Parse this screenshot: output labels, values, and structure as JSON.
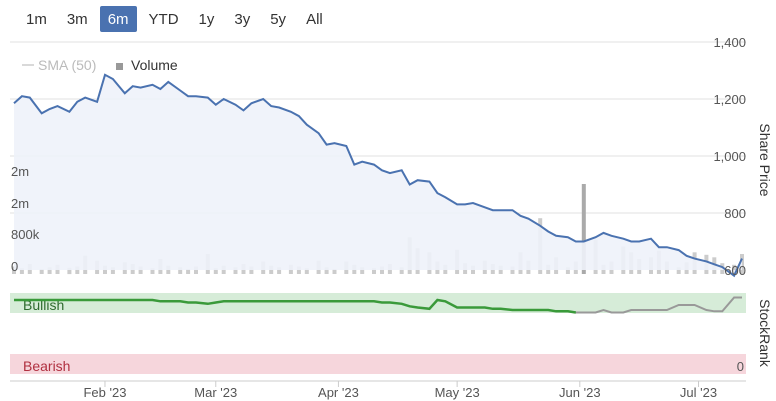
{
  "range_selector": {
    "buttons": [
      "1m",
      "3m",
      "6m",
      "YTD",
      "1y",
      "3y",
      "5y",
      "All"
    ],
    "active": "6m"
  },
  "legend": {
    "sma_label": "SMA (50)",
    "volume_label": "Volume"
  },
  "colors": {
    "price_line": "#4a72b0",
    "price_fill": "#eef2fa",
    "volume_bar": "#cccccc",
    "volume_spike": "#aaaaaa",
    "bullish_band": "#d6ecd8",
    "bearish_band": "#f6d6dc",
    "rank_green": "#3a9a3a",
    "rank_gray": "#999999",
    "active_btn": "#4a72b0"
  },
  "chart_data": {
    "type": "line",
    "title": "",
    "x_tick_labels": [
      "Feb '23",
      "Mar '23",
      "Apr '23",
      "May '23",
      "Jun '23",
      "Jul '23"
    ],
    "price_axis": {
      "title": "Share Price",
      "ticks": [
        "1,400",
        "1,200",
        "1,000",
        "800",
        "600"
      ],
      "ylim": [
        600,
        1400
      ]
    },
    "volume_axis": {
      "ticks": [
        "2m",
        "2m",
        "800k",
        "0"
      ]
    },
    "series": [
      {
        "name": "Share Price",
        "x": [
          "2023-01-09",
          "2023-01-11",
          "2023-01-13",
          "2023-01-16",
          "2023-01-18",
          "2023-01-20",
          "2023-01-23",
          "2023-01-25",
          "2023-01-27",
          "2023-01-30",
          "2023-02-01",
          "2023-02-03",
          "2023-02-06",
          "2023-02-08",
          "2023-02-10",
          "2023-02-13",
          "2023-02-15",
          "2023-02-17",
          "2023-02-20",
          "2023-02-22",
          "2023-02-24",
          "2023-02-27",
          "2023-03-01",
          "2023-03-03",
          "2023-03-06",
          "2023-03-08",
          "2023-03-10",
          "2023-03-13",
          "2023-03-15",
          "2023-03-17",
          "2023-03-20",
          "2023-03-22",
          "2023-03-24",
          "2023-03-27",
          "2023-03-29",
          "2023-03-31",
          "2023-04-03",
          "2023-04-05",
          "2023-04-07",
          "2023-04-10",
          "2023-04-12",
          "2023-04-14",
          "2023-04-17",
          "2023-04-19",
          "2023-04-21",
          "2023-04-24",
          "2023-04-26",
          "2023-04-28",
          "2023-05-01",
          "2023-05-03",
          "2023-05-05",
          "2023-05-08",
          "2023-05-10",
          "2023-05-12",
          "2023-05-15",
          "2023-05-17",
          "2023-05-19",
          "2023-05-22",
          "2023-05-24",
          "2023-05-26",
          "2023-05-29",
          "2023-05-31",
          "2023-06-02",
          "2023-06-05",
          "2023-06-07",
          "2023-06-09",
          "2023-06-12",
          "2023-06-14",
          "2023-06-16",
          "2023-06-19",
          "2023-06-21",
          "2023-06-23",
          "2023-06-26",
          "2023-06-28",
          "2023-06-30",
          "2023-07-03",
          "2023-07-05",
          "2023-07-07",
          "2023-07-10",
          "2023-07-12"
        ],
        "values": [
          1185,
          1210,
          1205,
          1150,
          1165,
          1175,
          1155,
          1190,
          1205,
          1190,
          1285,
          1270,
          1220,
          1245,
          1240,
          1250,
          1235,
          1260,
          1230,
          1210,
          1210,
          1205,
          1180,
          1200,
          1180,
          1160,
          1185,
          1200,
          1175,
          1170,
          1155,
          1140,
          1110,
          1080,
          1040,
          1045,
          1035,
          970,
          980,
          970,
          950,
          940,
          950,
          900,
          915,
          910,
          870,
          855,
          830,
          830,
          835,
          820,
          810,
          810,
          810,
          790,
          780,
          755,
          735,
          720,
          715,
          700,
          700,
          715,
          730,
          720,
          710,
          700,
          700,
          710,
          680,
          680,
          670,
          650,
          640,
          630,
          620,
          610,
          580,
          640
        ]
      },
      {
        "name": "Volume",
        "values": [
          90,
          70,
          120,
          60,
          80,
          110,
          75,
          90,
          220,
          160,
          100,
          80,
          140,
          120,
          90,
          70,
          180,
          100,
          80,
          60,
          90,
          240,
          70,
          100,
          80,
          120,
          90,
          150,
          100,
          80,
          110,
          90,
          70,
          160,
          80,
          60,
          150,
          110,
          80,
          70,
          90,
          120,
          80,
          440,
          310,
          260,
          150,
          110,
          290,
          130,
          100,
          160,
          120,
          100,
          90,
          260,
          160,
          670,
          110,
          200,
          80,
          150,
          1080,
          410,
          110,
          150,
          330,
          260,
          180,
          200,
          280,
          150,
          80,
          140,
          260,
          230,
          200,
          130,
          110,
          240
        ]
      },
      {
        "name": "StockRank",
        "values": [
          30,
          30,
          30,
          30,
          30,
          30,
          30,
          30,
          30,
          30,
          30,
          30,
          30,
          30,
          30,
          30,
          31,
          31,
          31,
          32,
          32,
          33,
          32,
          31,
          31,
          31,
          31,
          31,
          31,
          31,
          31,
          31,
          31,
          31,
          31,
          31,
          31,
          31,
          31,
          31,
          32,
          32,
          33,
          35,
          36,
          37,
          30,
          31,
          36,
          36,
          36,
          36,
          37,
          37,
          38,
          38,
          38,
          38,
          38,
          39,
          39,
          40,
          40,
          40,
          38,
          40,
          40,
          38,
          38,
          38,
          38,
          38,
          34,
          34,
          34,
          38,
          39,
          39,
          28,
          28
        ]
      }
    ],
    "stockrank_axis": {
      "title": "StockRank",
      "bands": [
        "Bullish",
        "Bearish"
      ],
      "bottom_tick": "0"
    }
  }
}
